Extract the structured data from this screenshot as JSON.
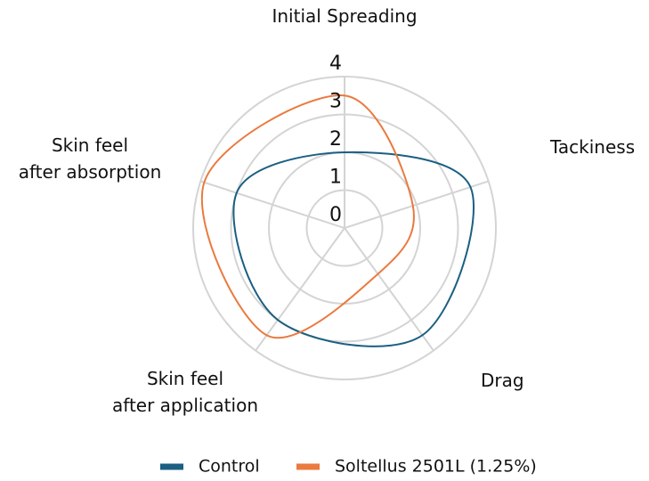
{
  "chart_data": {
    "type": "radar",
    "categories": [
      "Initial Spreading",
      "Tackiness",
      "Drag",
      "Skin feel\nafter application",
      "Skin feel\nafter absorption"
    ],
    "series": [
      {
        "name": "Control",
        "color": "#1b5f82",
        "values": [
          2.0,
          3.5,
          3.5,
          3.0,
          3.0
        ]
      },
      {
        "name": "Soltellus 2501L (1.25%)",
        "color": "#ea7a3e",
        "values": [
          3.5,
          1.9,
          1.5,
          3.5,
          3.9
        ]
      }
    ],
    "ylim": [
      0,
      4
    ],
    "yticks": [
      0,
      1,
      2,
      3,
      4
    ],
    "grid": true,
    "legend": "bottom"
  }
}
